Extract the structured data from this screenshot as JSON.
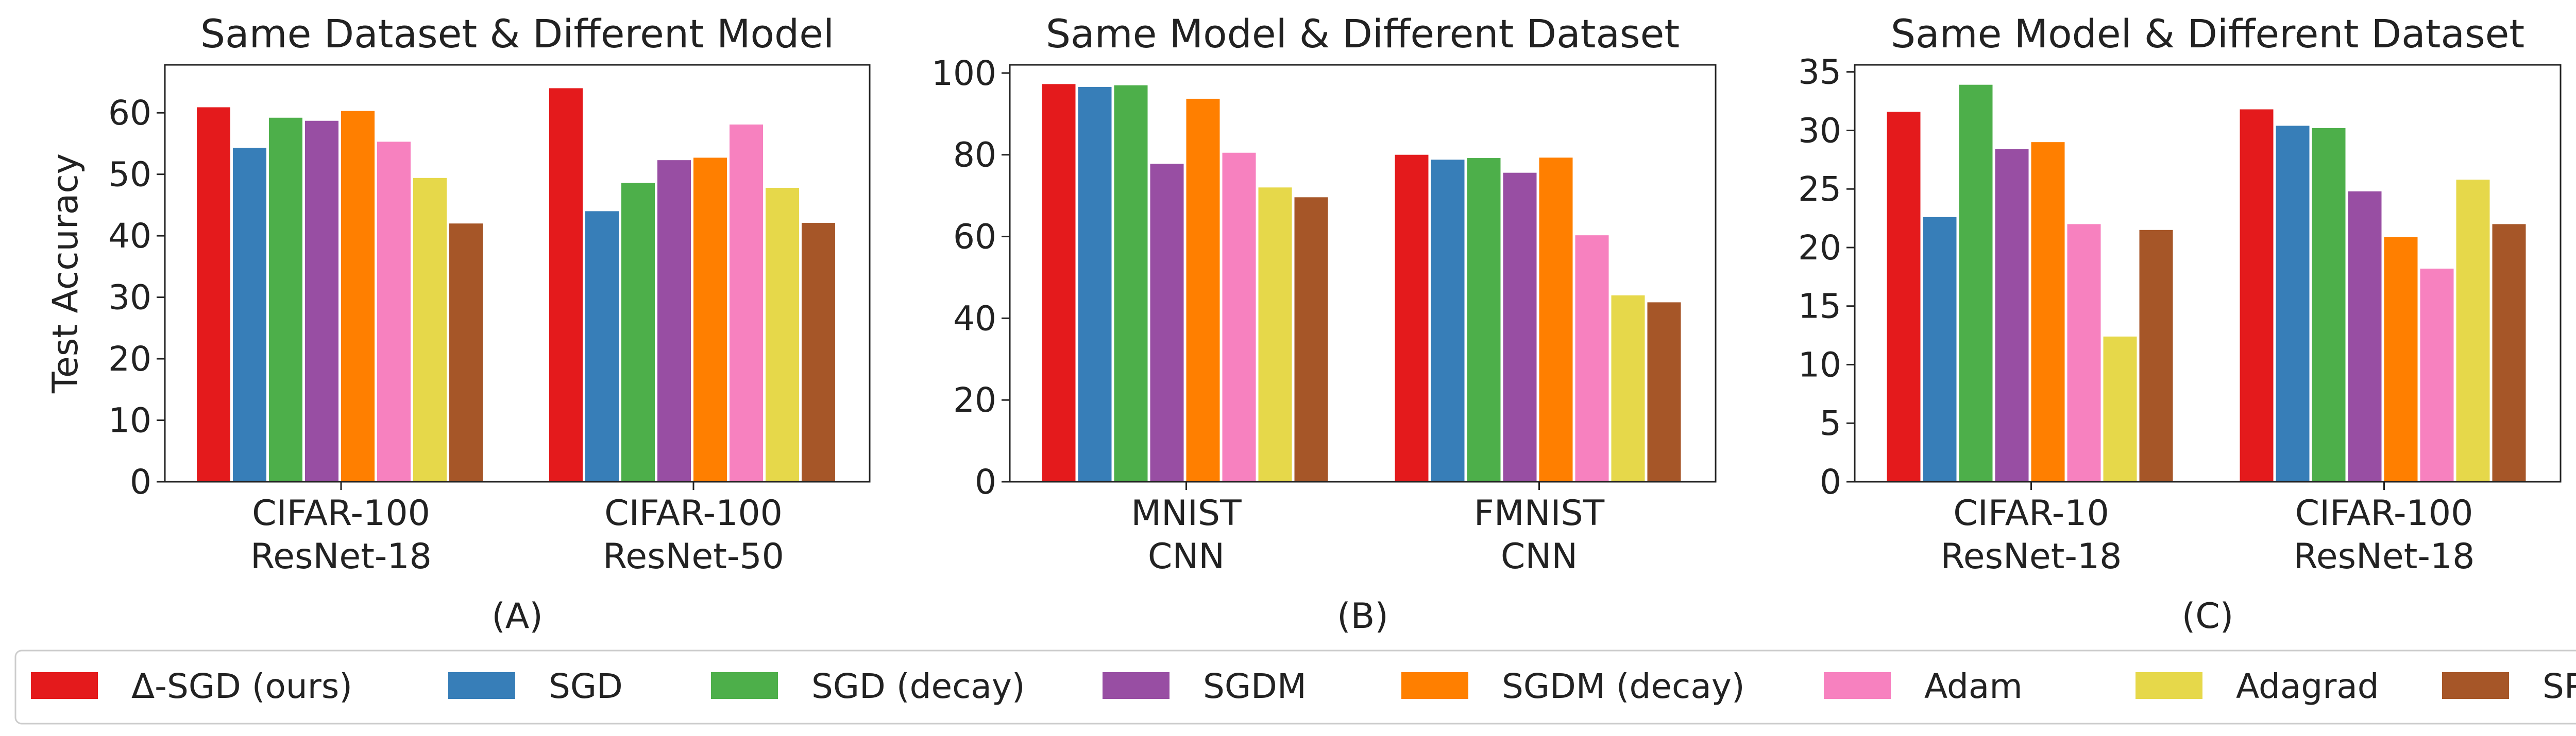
{
  "legend": {
    "entries": [
      {
        "label": "Δ-SGD (ours)",
        "color": "#e41a1c"
      },
      {
        "label": "SGD",
        "color": "#377eb8"
      },
      {
        "label": "SGD (decay)",
        "color": "#4daf4a"
      },
      {
        "label": "SGDM",
        "color": "#984ea3"
      },
      {
        "label": "SGDM (decay)",
        "color": "#ff7f00"
      },
      {
        "label": "Adam",
        "color": "#f781bf"
      },
      {
        "label": "Adagrad",
        "color": "#e6d84a"
      },
      {
        "label": "SPS",
        "color": "#a65628"
      }
    ]
  },
  "chart_data": [
    {
      "type": "bar",
      "title": "Same Dataset & Different Model",
      "ylabel": "Test Accuracy",
      "panel_label": "(A)",
      "categories": [
        [
          "CIFAR-100",
          "ResNet-18"
        ],
        [
          "CIFAR-100",
          "ResNet-50"
        ]
      ],
      "ylim": [
        0,
        67.8
      ],
      "yticks": [
        0,
        10,
        20,
        30,
        40,
        50,
        60
      ],
      "series": [
        {
          "name": "Δ-SGD (ours)",
          "values": [
            60.9,
            64.0
          ]
        },
        {
          "name": "SGD",
          "values": [
            54.3,
            44.0
          ]
        },
        {
          "name": "SGD (decay)",
          "values": [
            59.2,
            48.6
          ]
        },
        {
          "name": "SGDM",
          "values": [
            58.7,
            52.3
          ]
        },
        {
          "name": "SGDM (decay)",
          "values": [
            60.3,
            52.7
          ]
        },
        {
          "name": "Adam",
          "values": [
            55.3,
            58.1
          ]
        },
        {
          "name": "Adagrad",
          "values": [
            49.4,
            47.8
          ]
        },
        {
          "name": "SPS",
          "values": [
            42.0,
            42.1
          ]
        }
      ]
    },
    {
      "type": "bar",
      "title": "Same Model & Different Dataset",
      "ylabel": "",
      "panel_label": "(B)",
      "categories": [
        [
          "MNIST",
          "CNN"
        ],
        [
          "FMNIST",
          "CNN"
        ]
      ],
      "ylim": [
        0,
        102
      ],
      "yticks": [
        0,
        20,
        40,
        60,
        80,
        100
      ],
      "series": [
        {
          "name": "Δ-SGD (ours)",
          "values": [
            97.3,
            80.0
          ]
        },
        {
          "name": "SGD",
          "values": [
            96.6,
            78.8
          ]
        },
        {
          "name": "SGD (decay)",
          "values": [
            97.0,
            79.2
          ]
        },
        {
          "name": "SGDM",
          "values": [
            77.8,
            75.6
          ]
        },
        {
          "name": "SGDM (decay)",
          "values": [
            93.7,
            79.3
          ]
        },
        {
          "name": "Adam",
          "values": [
            80.5,
            60.3
          ]
        },
        {
          "name": "Adagrad",
          "values": [
            72.0,
            45.6
          ]
        },
        {
          "name": "SPS",
          "values": [
            69.6,
            43.9
          ]
        }
      ]
    },
    {
      "type": "bar",
      "title": "Same Model & Different Dataset",
      "ylabel": "",
      "panel_label": "(C)",
      "categories": [
        [
          "CIFAR-10",
          "ResNet-18"
        ],
        [
          "CIFAR-100",
          "ResNet-18"
        ]
      ],
      "ylim": [
        0,
        35.6
      ],
      "yticks": [
        0,
        5,
        10,
        15,
        20,
        25,
        30,
        35
      ],
      "series": [
        {
          "name": "Δ-SGD (ours)",
          "values": [
            31.6,
            31.8
          ]
        },
        {
          "name": "SGD",
          "values": [
            22.6,
            30.4
          ]
        },
        {
          "name": "SGD (decay)",
          "values": [
            33.9,
            30.2
          ]
        },
        {
          "name": "SGDM",
          "values": [
            28.4,
            24.8
          ]
        },
        {
          "name": "SGDM (decay)",
          "values": [
            29.0,
            20.9
          ]
        },
        {
          "name": "Adam",
          "values": [
            22.0,
            18.2
          ]
        },
        {
          "name": "Adagrad",
          "values": [
            12.4,
            25.8
          ]
        },
        {
          "name": "SPS",
          "values": [
            21.5,
            22.0
          ]
        }
      ]
    }
  ]
}
